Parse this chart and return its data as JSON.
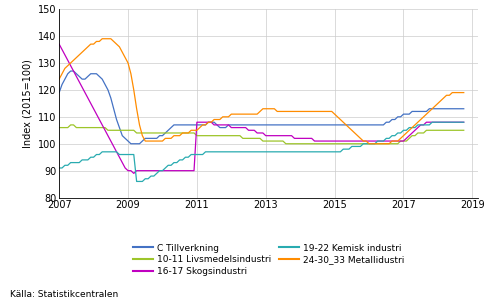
{
  "title": "",
  "ylabel": "Index (2015=100)",
  "xlabel": "",
  "xlim": [
    2007.0,
    2019.17
  ],
  "ylim": [
    80,
    150
  ],
  "yticks": [
    80,
    90,
    100,
    110,
    120,
    130,
    140,
    150
  ],
  "xticks": [
    2007,
    2009,
    2011,
    2013,
    2015,
    2017,
    2019
  ],
  "source_text": "Källa: Statistikcentralen",
  "series": {
    "C Tillverkning": {
      "color": "#4472C4",
      "values": [
        119,
        122,
        124,
        126,
        127,
        127,
        126,
        125,
        124,
        124,
        125,
        126,
        126,
        126,
        125,
        124,
        122,
        120,
        117,
        113,
        109,
        106,
        103,
        102,
        101,
        100,
        100,
        100,
        100,
        101,
        102,
        102,
        102,
        102,
        102,
        103,
        103,
        104,
        105,
        106,
        107,
        107,
        107,
        107,
        107,
        107,
        107,
        107,
        107,
        107,
        107,
        107,
        108,
        108,
        108,
        107,
        106,
        106,
        106,
        107,
        107,
        107,
        107,
        107,
        107,
        107,
        107,
        107,
        107,
        107,
        107,
        107,
        107,
        107,
        107,
        107,
        107,
        107,
        107,
        107,
        107,
        107,
        107,
        107,
        107,
        107,
        107,
        107,
        107,
        107,
        107,
        107,
        107,
        107,
        107,
        107,
        107,
        107,
        107,
        107,
        107,
        107,
        107,
        107,
        107,
        107,
        107,
        107,
        107,
        107,
        107,
        107,
        107,
        107,
        108,
        108,
        109,
        109,
        110,
        110,
        111,
        111,
        111,
        112,
        112,
        112,
        112,
        112,
        112,
        113,
        113,
        113,
        113,
        113,
        113,
        113,
        113,
        113,
        113,
        113,
        113,
        113,
        113,
        113
      ]
    },
    "10-11 Livsmedelsindustri": {
      "color": "#9DC52A",
      "values": [
        106,
        106,
        106,
        106,
        107,
        107,
        106,
        106,
        106,
        106,
        106,
        106,
        106,
        106,
        106,
        106,
        106,
        105,
        105,
        105,
        105,
        105,
        105,
        105,
        105,
        105,
        105,
        104,
        104,
        104,
        104,
        104,
        104,
        104,
        104,
        104,
        104,
        104,
        104,
        104,
        104,
        104,
        104,
        104,
        104,
        104,
        104,
        104,
        103,
        103,
        103,
        103,
        103,
        103,
        103,
        103,
        103,
        103,
        103,
        103,
        103,
        103,
        103,
        103,
        102,
        102,
        102,
        102,
        102,
        102,
        102,
        101,
        101,
        101,
        101,
        101,
        101,
        101,
        101,
        100,
        100,
        100,
        100,
        100,
        100,
        100,
        100,
        100,
        100,
        100,
        100,
        100,
        100,
        100,
        100,
        100,
        100,
        100,
        100,
        100,
        100,
        100,
        100,
        100,
        100,
        100,
        100,
        100,
        100,
        100,
        100,
        100,
        100,
        100,
        100,
        100,
        100,
        100,
        100,
        101,
        101,
        101,
        102,
        103,
        103,
        104,
        104,
        104,
        105,
        105,
        105,
        105,
        105,
        105,
        105,
        105,
        105,
        105,
        105,
        105,
        105,
        105,
        105,
        105
      ]
    },
    "16-17 Skogsindustri": {
      "color": "#C000C0",
      "values": [
        137,
        135,
        133,
        131,
        129,
        127,
        125,
        123,
        121,
        119,
        117,
        115,
        113,
        111,
        109,
        107,
        105,
        103,
        101,
        99,
        97,
        95,
        93,
        91,
        90,
        90,
        89,
        90,
        90,
        90,
        90,
        90,
        90,
        90,
        90,
        90,
        90,
        90,
        90,
        90,
        90,
        90,
        90,
        90,
        90,
        90,
        90,
        90,
        108,
        108,
        108,
        108,
        108,
        108,
        107,
        107,
        107,
        107,
        107,
        107,
        106,
        106,
        106,
        106,
        106,
        106,
        105,
        105,
        105,
        104,
        104,
        104,
        103,
        103,
        103,
        103,
        103,
        103,
        103,
        103,
        103,
        103,
        102,
        102,
        102,
        102,
        102,
        102,
        102,
        101,
        101,
        101,
        101,
        101,
        101,
        101,
        101,
        101,
        101,
        101,
        101,
        101,
        101,
        101,
        101,
        101,
        101,
        101,
        101,
        101,
        101,
        101,
        101,
        101,
        101,
        101,
        101,
        101,
        101,
        101,
        101,
        102,
        103,
        104,
        105,
        106,
        107,
        107,
        108,
        108,
        108,
        108,
        108,
        108,
        108,
        108,
        108,
        108,
        108,
        108,
        108,
        108,
        108,
        108
      ]
    },
    "19-22 Kemisk industri": {
      "color": "#29ABB0",
      "values": [
        91,
        91,
        92,
        92,
        93,
        93,
        93,
        93,
        94,
        94,
        94,
        95,
        95,
        96,
        96,
        97,
        97,
        97,
        97,
        97,
        97,
        96,
        96,
        96,
        96,
        96,
        96,
        86,
        86,
        86,
        87,
        87,
        88,
        88,
        89,
        90,
        90,
        91,
        92,
        92,
        93,
        93,
        94,
        94,
        95,
        95,
        96,
        96,
        96,
        96,
        96,
        97,
        97,
        97,
        97,
        97,
        97,
        97,
        97,
        97,
        97,
        97,
        97,
        97,
        97,
        97,
        97,
        97,
        97,
        97,
        97,
        97,
        97,
        97,
        97,
        97,
        97,
        97,
        97,
        97,
        97,
        97,
        97,
        97,
        97,
        97,
        97,
        97,
        97,
        97,
        97,
        97,
        97,
        97,
        97,
        97,
        97,
        97,
        97,
        98,
        98,
        98,
        99,
        99,
        99,
        99,
        100,
        100,
        100,
        100,
        100,
        101,
        101,
        101,
        102,
        102,
        103,
        103,
        104,
        104,
        105,
        105,
        106,
        106,
        106,
        107,
        107,
        107,
        107,
        107,
        108,
        108,
        108,
        108,
        108,
        108,
        108,
        108,
        108,
        108,
        108,
        108,
        108,
        108
      ]
    },
    "24-30_33 Metallidustri": {
      "color": "#FF8C00",
      "values": [
        124,
        126,
        128,
        129,
        130,
        131,
        132,
        133,
        134,
        135,
        136,
        137,
        137,
        138,
        138,
        139,
        139,
        139,
        139,
        138,
        137,
        136,
        134,
        132,
        130,
        126,
        120,
        113,
        107,
        103,
        101,
        101,
        101,
        101,
        101,
        101,
        101,
        102,
        102,
        102,
        103,
        103,
        103,
        104,
        104,
        104,
        105,
        105,
        105,
        106,
        107,
        107,
        108,
        108,
        109,
        109,
        109,
        110,
        110,
        110,
        111,
        111,
        111,
        111,
        111,
        111,
        111,
        111,
        111,
        111,
        112,
        113,
        113,
        113,
        113,
        113,
        112,
        112,
        112,
        112,
        112,
        112,
        112,
        112,
        112,
        112,
        112,
        112,
        112,
        112,
        112,
        112,
        112,
        112,
        112,
        112,
        111,
        110,
        109,
        108,
        107,
        106,
        105,
        104,
        103,
        102,
        101,
        101,
        100,
        100,
        100,
        100,
        100,
        100,
        100,
        100,
        101,
        101,
        101,
        102,
        103,
        104,
        105,
        106,
        107,
        108,
        109,
        110,
        111,
        112,
        113,
        114,
        115,
        116,
        117,
        118,
        118,
        119,
        119,
        119,
        119,
        119,
        119,
        119
      ]
    }
  },
  "legend_cols": [
    [
      {
        "label": "C Tillverkning",
        "color": "#4472C4"
      },
      {
        "label": "16-17 Skogsindustri",
        "color": "#C000C0"
      },
      {
        "label": "24-30_33 Metallidustri",
        "color": "#FF8C00"
      }
    ],
    [
      {
        "label": "10-11 Livsmedelsindustri",
        "color": "#9DC52A"
      },
      {
        "label": "19-22 Kemisk industri",
        "color": "#29ABB0"
      }
    ]
  ]
}
